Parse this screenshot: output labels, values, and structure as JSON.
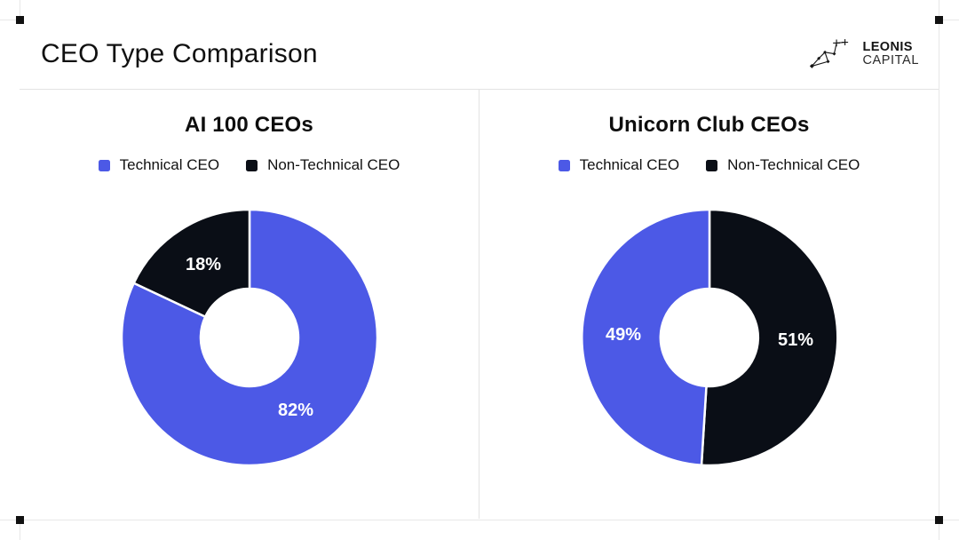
{
  "window": {
    "background": "#ffffff",
    "guide_color": "#e7e7e7",
    "handle_color": "#111111"
  },
  "header": {
    "title": "CEO Type Comparison"
  },
  "logo": {
    "line1": "LEONIS",
    "line2": "CAPITAL"
  },
  "chart_data": [
    {
      "type": "pie",
      "subtype": "donut",
      "title": "AI 100 CEOs",
      "legend": [
        "Technical CEO",
        "Non-Technical CEO"
      ],
      "values": [
        82,
        18
      ],
      "unit": "%",
      "colors": [
        "#4c59e6",
        "#0a0e16"
      ],
      "slice_label_color": "#ffffff",
      "legend_position": "top",
      "sort": "descending",
      "direction": "clockwise",
      "start_angle_deg": 0,
      "hole_ratio": 0.38
    },
    {
      "type": "pie",
      "subtype": "donut",
      "title": "Unicorn Club CEOs",
      "legend": [
        "Technical CEO",
        "Non-Technical CEO"
      ],
      "values": [
        49,
        51
      ],
      "unit": "%",
      "colors": [
        "#4c59e6",
        "#0a0e16"
      ],
      "slice_label_color": "#ffffff",
      "legend_position": "top",
      "sort": "descending",
      "direction": "clockwise",
      "start_angle_deg": 0,
      "hole_ratio": 0.38
    }
  ]
}
